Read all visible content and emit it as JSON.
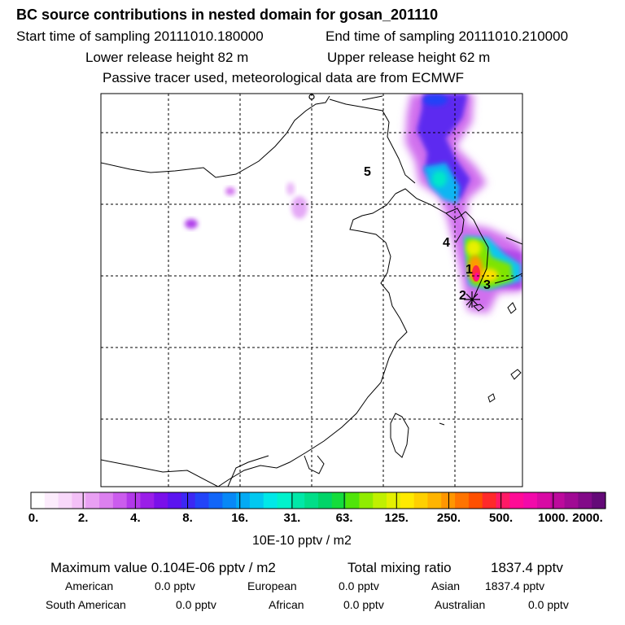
{
  "header": {
    "title": "BC  source contributions in nested domain for gosan_201110",
    "start_label": "Start time of sampling 20111010.180000",
    "end_label": "End time of sampling 20111010.210000",
    "lower_label": "Lower release height   82 m",
    "upper_label": "Upper release height   62 m",
    "tracer_note": "Passive tracer used, meteorological data are from ECMWF"
  },
  "map": {
    "region_labels": [
      "1",
      "2",
      "3",
      "4",
      "5"
    ],
    "receptor_marker": "receptor-star"
  },
  "colorbar": {
    "labels": [
      "0.",
      "2.",
      "4.",
      "8.",
      "16.",
      "31.",
      "63.",
      "125.",
      "250.",
      "500.",
      "1000.",
      "2000."
    ],
    "colors": [
      "#ffffff",
      "#fcecfc",
      "#f8d8fa",
      "#f3c0f7",
      "#e9a0f3",
      "#dc80ef",
      "#cb5ced",
      "#b238ea",
      "#9a1ee8",
      "#7a10ea",
      "#5b14f0",
      "#3c28f4",
      "#2244f8",
      "#1266f8",
      "#0888f6",
      "#04aaf4",
      "#02c8f0",
      "#00e8e8",
      "#00f2cc",
      "#00e8a8",
      "#00de88",
      "#00d468",
      "#14dc3c",
      "#50e40a",
      "#90ec00",
      "#c0f000",
      "#e4f000",
      "#ffea00",
      "#ffd000",
      "#ffb400",
      "#ff9600",
      "#ff7400",
      "#ff5000",
      "#ff2a2a",
      "#ff1a66",
      "#ff0c96",
      "#f20aaa",
      "#d80aa4",
      "#bc0a9c",
      "#a00a94",
      "#820a88",
      "#640a78"
    ],
    "unit": "10E-10 pptv / m2"
  },
  "stats": {
    "max_label": "Maximum value  0.104E-06 pptv / m2",
    "total_label": "Total mixing ratio",
    "total_value": "1837.4 pptv",
    "american_label": "American",
    "american_value": "0.0 pptv",
    "european_label": "European",
    "european_value": "0.0 pptv",
    "asian_label": "Asian",
    "asian_value": "1837.4 pptv",
    "south_american_label": "South American",
    "south_american_value": "0.0 pptv",
    "african_label": "African",
    "african_value": "0.0 pptv",
    "australian_label": "Australian",
    "australian_value": "0.0 pptv"
  }
}
